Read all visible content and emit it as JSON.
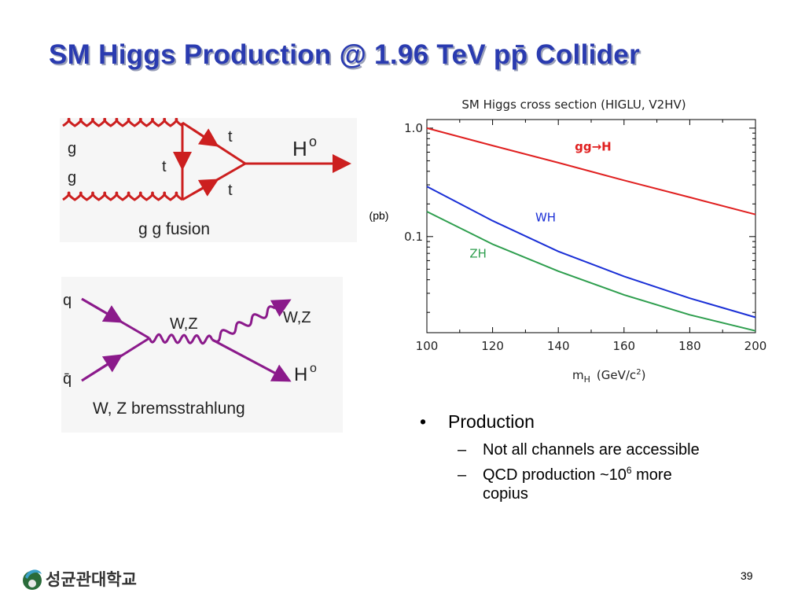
{
  "slide": {
    "title": "SM Higgs Production @ 1.96 TeV pp̄ Collider",
    "page_number": "39",
    "logo_text": "성균관대학교"
  },
  "diagram_gg": {
    "labels": [
      "g",
      "g",
      "t",
      "t",
      "t",
      "H",
      "o",
      "g g fusion"
    ],
    "color": "#cc1f1f"
  },
  "diagram_wz": {
    "labels": [
      "q",
      "q̄",
      "W,Z",
      "W,Z",
      "H",
      "o",
      "W, Z bremsstrahlung"
    ],
    "color": "#8b1a8b"
  },
  "bullets": {
    "main": "Production",
    "sub1": "Not all channels are accessible",
    "sub2_pre": "QCD production ~10",
    "sub2_sup": "6",
    "sub2_post": " more copius"
  },
  "chart_data": {
    "type": "line",
    "title": "SM Higgs cross section (HIGLU, V2HV)",
    "xlabel_main": "m",
    "xlabel_sub": "H",
    "xlabel_units_pre": "(GeV/c",
    "xlabel_units_sup": "2",
    "xlabel_units_post": ")",
    "ylabel": "(pb)",
    "xlim": [
      100,
      200
    ],
    "ylim": [
      0.013,
      1.2
    ],
    "yscale": "log",
    "xticks": [
      100,
      120,
      140,
      160,
      180,
      200
    ],
    "xtick_labels": [
      "100",
      "120",
      "140",
      "160",
      "180",
      "200"
    ],
    "yticks": [
      1.0,
      0.1
    ],
    "ytick_labels": [
      "1.0",
      "0.1"
    ],
    "series": [
      {
        "name": "gg→H",
        "color": "#e02020",
        "label_x": 145,
        "label_y": 0.62,
        "x": [
          100,
          120,
          140,
          160,
          180,
          200
        ],
        "y": [
          1.0,
          0.69,
          0.48,
          0.33,
          0.23,
          0.16
        ]
      },
      {
        "name": "WH",
        "color": "#1a2fd6",
        "label_x": 133,
        "label_y": 0.138,
        "x": [
          100,
          120,
          140,
          160,
          180,
          200
        ],
        "y": [
          0.29,
          0.14,
          0.073,
          0.043,
          0.027,
          0.018
        ]
      },
      {
        "name": "ZH",
        "color": "#2e9e4e",
        "label_x": 113,
        "label_y": 0.064,
        "x": [
          100,
          120,
          140,
          160,
          180,
          200
        ],
        "y": [
          0.17,
          0.085,
          0.048,
          0.029,
          0.019,
          0.0135
        ]
      }
    ]
  }
}
